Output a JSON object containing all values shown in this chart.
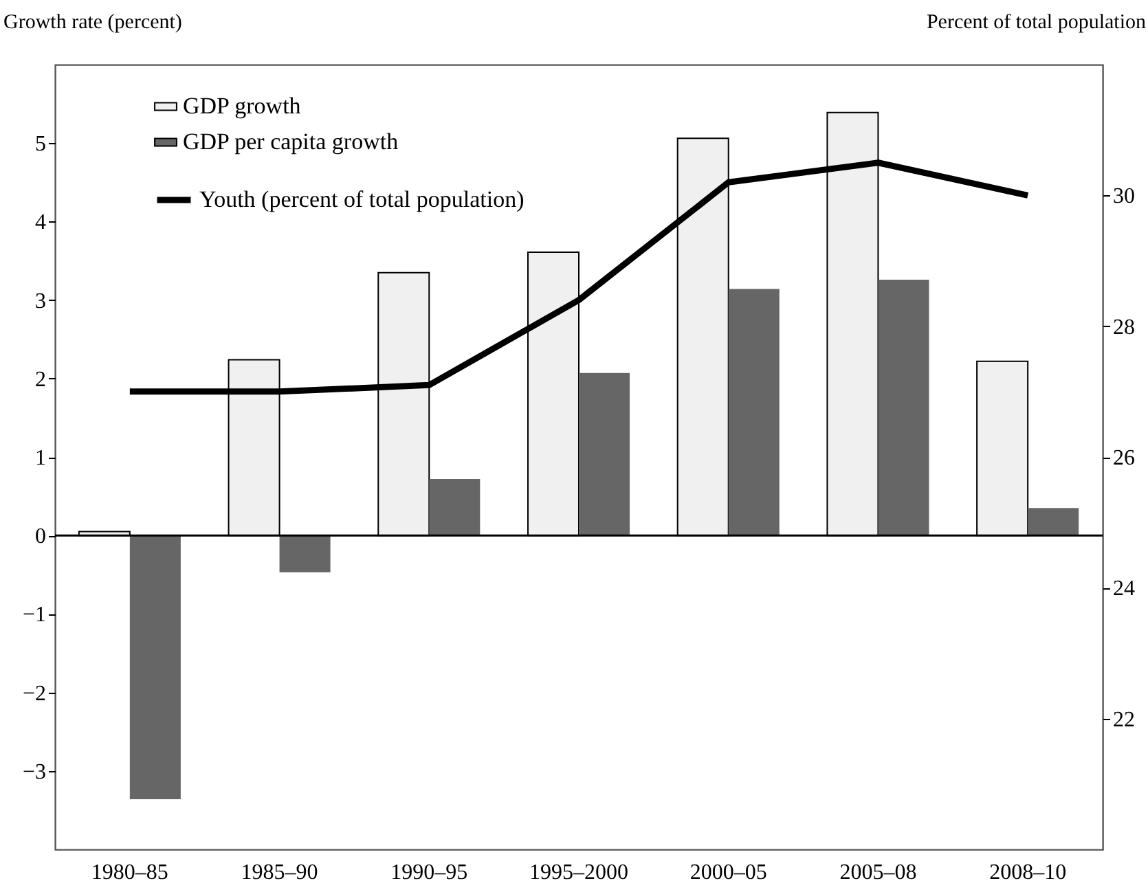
{
  "chart_data": {
    "type": "bar",
    "categories": [
      "1980–85",
      "1985–90",
      "1990–95",
      "1995–2000",
      "2000–05",
      "2005–08",
      "2008–10"
    ],
    "series": [
      {
        "name": "GDP growth",
        "color": "#f0f0f0",
        "values": [
          0.05,
          2.24,
          3.35,
          3.61,
          5.06,
          5.39,
          2.22
        ]
      },
      {
        "name": "GDP per capita growth",
        "color": "#666666",
        "values": [
          -3.36,
          -0.47,
          0.72,
          2.07,
          3.14,
          3.26,
          0.35
        ]
      },
      {
        "name": "Youth (percent of total population)",
        "type": "line",
        "axis": "y2",
        "color": "#000000",
        "values": [
          27.0,
          27.0,
          27.1,
          28.4,
          30.2,
          30.5,
          30.0
        ]
      }
    ],
    "ylabel": "Growth rate (percent)",
    "y2label": "Percent of total population",
    "ylim": [
      -4,
      6
    ],
    "yticks": [
      -3,
      -2,
      -1,
      0,
      1,
      2,
      3,
      4,
      5
    ],
    "y2lim": [
      20,
      32
    ],
    "y2ticks": [
      22,
      24,
      26,
      28,
      30
    ],
    "ref_lines": [
      {
        "axis": "y",
        "value": 0,
        "color": "#000000"
      }
    ],
    "legend": "top left",
    "grid": false
  }
}
